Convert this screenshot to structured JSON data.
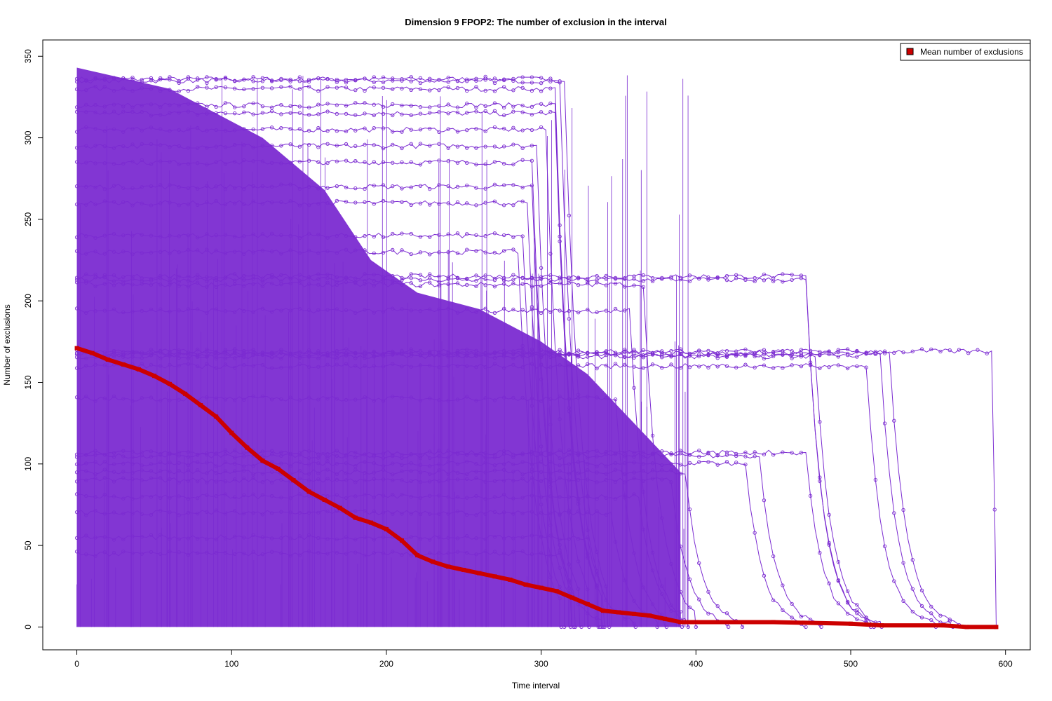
{
  "chart_data": {
    "type": "scatter",
    "title": "Dimension 9 FPOP2: The number of exclusion in the interval",
    "xlabel": "Time interval",
    "ylabel": "Number of exclusions",
    "xlim": [
      -22,
      616
    ],
    "ylim": [
      -14,
      360
    ],
    "x_ticks": [
      0,
      100,
      200,
      300,
      400,
      500,
      600
    ],
    "y_ticks": [
      0,
      50,
      100,
      150,
      200,
      250,
      300,
      350
    ],
    "grid": false,
    "legend": {
      "placement": "top-right",
      "entries": [
        {
          "label": "Mean number of exclusions",
          "color": "#cc0000"
        }
      ]
    },
    "colors": {
      "individual_series": "#7b2bd1",
      "mean_series": "#cc0000"
    },
    "series": [
      {
        "name": "Mean number of exclusions",
        "color": "#cc0000",
        "points": [
          [
            0,
            171
          ],
          [
            10,
            168
          ],
          [
            20,
            164
          ],
          [
            30,
            161
          ],
          [
            40,
            158
          ],
          [
            50,
            154
          ],
          [
            60,
            149
          ],
          [
            70,
            143
          ],
          [
            80,
            136
          ],
          [
            90,
            129
          ],
          [
            100,
            119
          ],
          [
            110,
            110
          ],
          [
            120,
            102
          ],
          [
            130,
            97
          ],
          [
            140,
            90
          ],
          [
            150,
            83
          ],
          [
            160,
            78
          ],
          [
            170,
            73
          ],
          [
            180,
            67
          ],
          [
            190,
            64
          ],
          [
            200,
            60
          ],
          [
            210,
            53
          ],
          [
            220,
            44
          ],
          [
            230,
            40
          ],
          [
            240,
            37
          ],
          [
            250,
            35
          ],
          [
            260,
            33
          ],
          [
            270,
            31
          ],
          [
            280,
            29
          ],
          [
            290,
            26
          ],
          [
            300,
            24
          ],
          [
            310,
            22
          ],
          [
            320,
            18
          ],
          [
            330,
            14
          ],
          [
            340,
            10
          ],
          [
            350,
            9
          ],
          [
            360,
            8
          ],
          [
            370,
            7
          ],
          [
            380,
            5
          ],
          [
            390,
            3
          ],
          [
            400,
            3
          ],
          [
            450,
            3
          ],
          [
            500,
            2
          ],
          [
            520,
            1
          ],
          [
            560,
            1
          ],
          [
            575,
            0
          ],
          [
            594,
            0
          ]
        ]
      }
    ],
    "individual_traces": [
      {
        "start": 336,
        "end_x": 343,
        "final": 0
      },
      {
        "start": 335,
        "end_x": 341,
        "final": 0
      },
      {
        "start": 330,
        "end_x": 339,
        "final": 0
      },
      {
        "start": 320,
        "end_x": 337,
        "final": 0
      },
      {
        "start": 315,
        "end_x": 336,
        "final": 0
      },
      {
        "start": 305,
        "end_x": 330,
        "final": 0
      },
      {
        "start": 295,
        "end_x": 325,
        "final": 0
      },
      {
        "start": 285,
        "end_x": 322,
        "final": 0
      },
      {
        "start": 270,
        "end_x": 320,
        "final": 0
      },
      {
        "start": 260,
        "end_x": 318,
        "final": 0
      },
      {
        "start": 240,
        "end_x": 315,
        "final": 0
      },
      {
        "start": 230,
        "end_x": 312,
        "final": 0
      },
      {
        "start": 215,
        "end_x": 515,
        "final": 0
      },
      {
        "start": 213,
        "end_x": 512,
        "final": 0
      },
      {
        "start": 210,
        "end_x": 400,
        "final": 0
      },
      {
        "start": 194,
        "end_x": 390,
        "final": 0
      },
      {
        "start": 169,
        "end_x": 593,
        "final": 72
      },
      {
        "start": 168,
        "end_x": 572,
        "final": 0
      },
      {
        "start": 167,
        "end_x": 565,
        "final": 0
      },
      {
        "start": 166,
        "end_x": 520,
        "final": 0
      },
      {
        "start": 160,
        "end_x": 555,
        "final": 0
      },
      {
        "start": 140,
        "end_x": 380,
        "final": 0
      },
      {
        "start": 107,
        "end_x": 515,
        "final": 0
      },
      {
        "start": 105,
        "end_x": 480,
        "final": 0
      },
      {
        "start": 100,
        "end_x": 470,
        "final": 0
      },
      {
        "start": 95,
        "end_x": 430,
        "final": 0
      },
      {
        "start": 90,
        "end_x": 420,
        "final": 0
      },
      {
        "start": 80,
        "end_x": 395,
        "final": 0
      },
      {
        "start": 70,
        "end_x": 375,
        "final": 0
      },
      {
        "start": 55,
        "end_x": 360,
        "final": 0
      },
      {
        "start": 45,
        "end_x": 340,
        "final": 0
      }
    ]
  }
}
